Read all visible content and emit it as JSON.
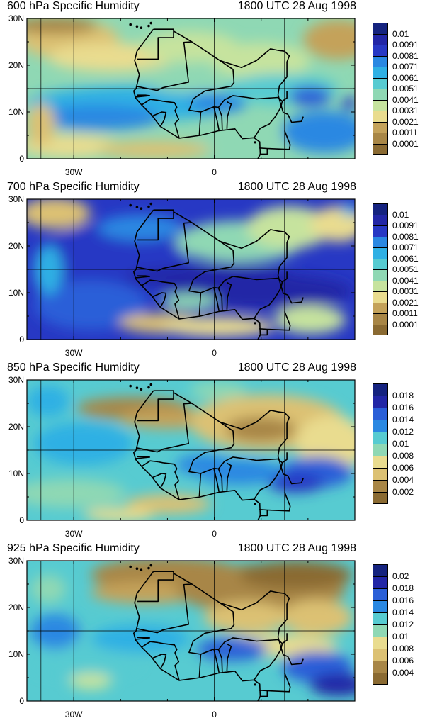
{
  "time_label": "1800 UTC 28 Aug 1998",
  "lat_labels": [
    "30N",
    "20N",
    "10N",
    "0"
  ],
  "lon_labels": [
    "30W",
    "0"
  ],
  "panels": [
    {
      "title": "600 hPa Specific Humidity",
      "colorbar_labels": [
        "0.01",
        "0.0091",
        "0.0081",
        "0.0071",
        "0.0061",
        "0.0051",
        "0.0041",
        "0.0031",
        "0.0021",
        "0.0011",
        "0.0001"
      ]
    },
    {
      "title": "700 hPa Specific Humidity",
      "colorbar_labels": [
        "0.01",
        "0.0091",
        "0.0081",
        "0.0071",
        "0.0061",
        "0.0051",
        "0.0041",
        "0.0031",
        "0.0021",
        "0.0011",
        "0.0001"
      ]
    },
    {
      "title": "850 hPa Specific Humidity",
      "colorbar_labels": [
        "0.018",
        "0.016",
        "0.014",
        "0.012",
        "0.01",
        "0.008",
        "0.006",
        "0.004",
        "0.002"
      ]
    },
    {
      "title": "925 hPa Specific Humidity",
      "colorbar_labels": [
        "0.02",
        "0.018",
        "0.016",
        "0.014",
        "0.012",
        "0.01",
        "0.008",
        "0.006",
        "0.004"
      ]
    }
  ],
  "colors": {
    "palette": [
      "#8a6a32",
      "#a88646",
      "#c4a25a",
      "#dcc173",
      "#e9dc8f",
      "#c6e39e",
      "#8fd8b4",
      "#57cbd1",
      "#2fb0e4",
      "#2a88e2",
      "#2a5fd8",
      "#2738c4",
      "#2226a6",
      "#15237f"
    ],
    "coastline": "#000000",
    "grid": "#000000"
  }
}
